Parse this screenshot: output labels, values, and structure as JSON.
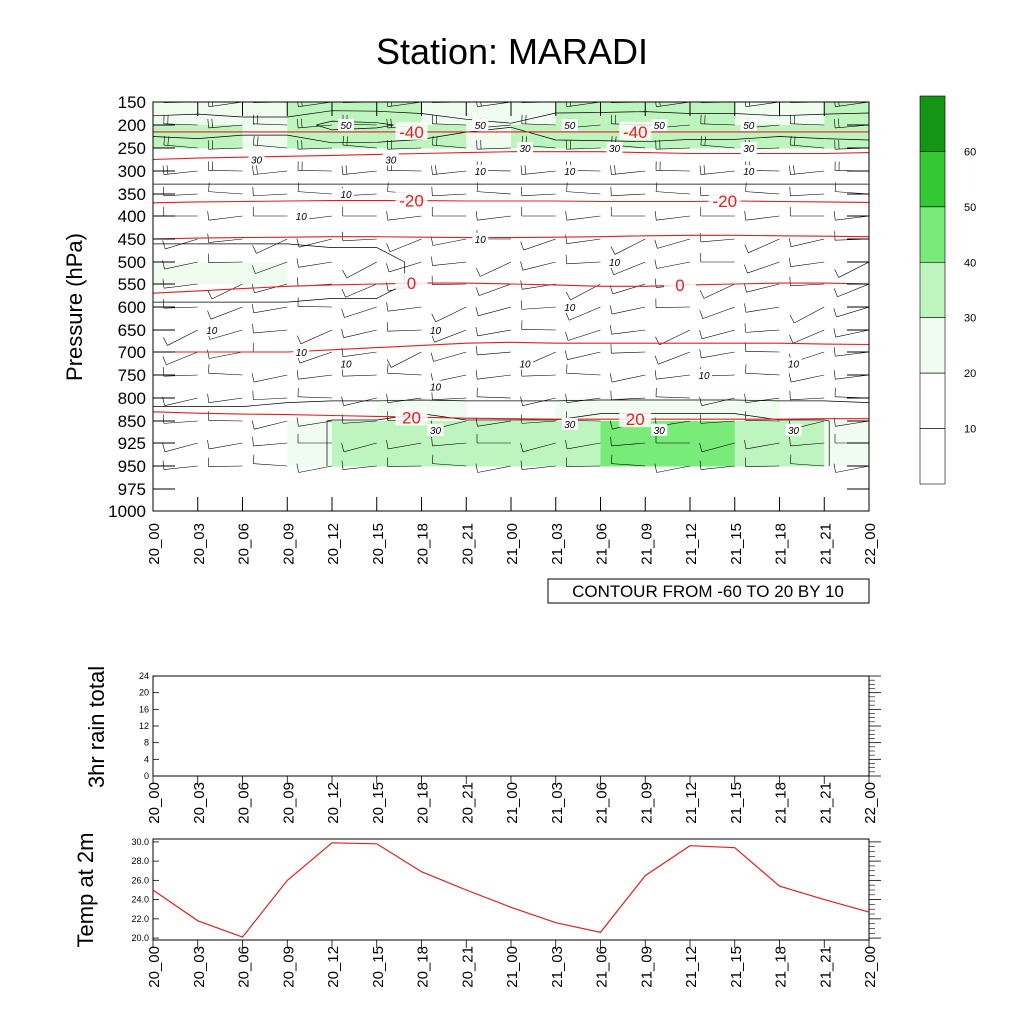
{
  "title": "Station: MARADI",
  "colors": {
    "isotherm": "#e02020",
    "contour": "#000000",
    "temp_line": "#e02020",
    "shade": [
      "#ffffff",
      "#ffffff",
      "#f0fcf0",
      "#bef5be",
      "#78eb78",
      "#32c832",
      "#149614"
    ]
  },
  "chart_data": [
    {
      "type": "contour",
      "name": "upper-air-time-section",
      "title": "Station: MARADI",
      "ylabel": "Pressure (hPa)",
      "xlabel": "",
      "x_ticks": [
        "20_00",
        "20_03",
        "20_06",
        "20_09",
        "20_12",
        "20_15",
        "20_18",
        "20_21",
        "21_00",
        "21_03",
        "21_06",
        "21_09",
        "21_12",
        "21_15",
        "21_18",
        "21_21",
        "22_00"
      ],
      "y_ticks": [
        "150",
        "200",
        "250",
        "300",
        "350",
        "400",
        "450",
        "500",
        "550",
        "600",
        "650",
        "700",
        "750",
        "800",
        "850",
        "925",
        "950",
        "975",
        "1000"
      ],
      "info_label": "CONTOUR FROM -60 TO 20 BY 10",
      "colorbar": {
        "levels": [
          10,
          20,
          30,
          40,
          50,
          60
        ],
        "labels": [
          "10",
          "20",
          "30",
          "40",
          "50",
          "60"
        ]
      },
      "wind_speed_contours": [
        {
          "level": 10,
          "label": "10"
        },
        {
          "level": 30,
          "label": "30"
        },
        {
          "level": 50,
          "label": "50"
        }
      ],
      "contour_labels": [
        {
          "text": "50",
          "level": 50,
          "time": "20_12",
          "pressure": 200
        },
        {
          "text": "50",
          "level": 50,
          "time": "20_21",
          "pressure": 200
        },
        {
          "text": "50",
          "level": 50,
          "time": "21_03",
          "pressure": 200
        },
        {
          "text": "50",
          "level": 50,
          "time": "21_09",
          "pressure": 200
        },
        {
          "text": "50",
          "level": 50,
          "time": "21_15",
          "pressure": 200
        },
        {
          "text": "30",
          "level": 30,
          "time": "20_06",
          "pressure": 275
        },
        {
          "text": "30",
          "level": 30,
          "time": "20_15",
          "pressure": 275
        },
        {
          "text": "30",
          "level": 30,
          "time": "21_00",
          "pressure": 250
        },
        {
          "text": "30",
          "level": 30,
          "time": "21_06",
          "pressure": 250
        },
        {
          "text": "30",
          "level": 30,
          "time": "21_15",
          "pressure": 250
        },
        {
          "text": "10",
          "level": 10,
          "time": "20_12",
          "pressure": 350
        },
        {
          "text": "10",
          "level": 10,
          "time": "20_21",
          "pressure": 300
        },
        {
          "text": "10",
          "level": 10,
          "time": "21_03",
          "pressure": 300
        },
        {
          "text": "10",
          "level": 10,
          "time": "21_15",
          "pressure": 300
        },
        {
          "text": "10",
          "level": 10,
          "time": "20_09",
          "pressure": 400
        },
        {
          "text": "10",
          "level": 10,
          "time": "20_21",
          "pressure": 450
        },
        {
          "text": "10",
          "level": 10,
          "time": "21_06",
          "pressure": 500
        },
        {
          "text": "10",
          "level": 10,
          "time": "21_03",
          "pressure": 600
        },
        {
          "text": "10",
          "level": 10,
          "time": "20_03",
          "pressure": 650
        },
        {
          "text": "10",
          "level": 10,
          "time": "20_18",
          "pressure": 650
        },
        {
          "text": "10",
          "level": 10,
          "time": "20_09",
          "pressure": 700
        },
        {
          "text": "10",
          "level": 10,
          "time": "20_12",
          "pressure": 725
        },
        {
          "text": "10",
          "level": 10,
          "time": "21_00",
          "pressure": 725
        },
        {
          "text": "10",
          "level": 10,
          "time": "21_12",
          "pressure": 750
        },
        {
          "text": "10",
          "level": 10,
          "time": "21_18",
          "pressure": 725
        },
        {
          "text": "10",
          "level": 10,
          "time": "20_18",
          "pressure": 775
        },
        {
          "text": "30",
          "level": 30,
          "time": "20_18",
          "pressure": 880
        },
        {
          "text": "30",
          "level": 30,
          "time": "21_03",
          "pressure": 860
        },
        {
          "text": "30",
          "level": 30,
          "time": "21_09",
          "pressure": 880
        },
        {
          "text": "30",
          "level": 30,
          "time": "21_18",
          "pressure": 880
        }
      ],
      "isotherms": [
        {
          "value": -40,
          "labels": [
            {
              "text": "-40",
              "time": "20_18"
            },
            {
              "text": "-40",
              "time": "21_09"
            }
          ],
          "pressure": [
            215,
            215,
            215,
            215,
            215,
            215,
            215,
            215,
            215,
            215,
            215,
            215,
            215,
            215,
            215,
            215,
            215
          ]
        },
        {
          "value": -30,
          "labels": [],
          "pressure": [
            275,
            272,
            270,
            268,
            266,
            264,
            262,
            260,
            258,
            258,
            258,
            260,
            262,
            262,
            262,
            262,
            260
          ]
        },
        {
          "value": -20,
          "labels": [
            {
              "text": "-20",
              "time": "20_18"
            },
            {
              "text": "-20",
              "time": "21_15"
            }
          ],
          "pressure": [
            370,
            368,
            367,
            366,
            365,
            365,
            365,
            366,
            366,
            366,
            367,
            367,
            367,
            366,
            367,
            368,
            369
          ]
        },
        {
          "value": -10,
          "labels": [],
          "pressure": [
            450,
            448,
            447,
            446,
            445,
            445,
            446,
            447,
            447,
            446,
            445,
            443,
            442,
            442,
            443,
            444,
            445
          ]
        },
        {
          "value": 0,
          "labels": [
            {
              "text": "0",
              "time": "20_18"
            },
            {
              "text": "0",
              "time": "21_12"
            }
          ],
          "pressure": [
            570,
            565,
            560,
            555,
            552,
            550,
            548,
            548,
            550,
            552,
            555,
            555,
            552,
            550,
            548,
            548,
            550
          ]
        },
        {
          "value": 10,
          "labels": [],
          "pressure": [
            700,
            700,
            700,
            700,
            695,
            690,
            685,
            680,
            678,
            680,
            680,
            680,
            680,
            680,
            680,
            682,
            683
          ]
        },
        {
          "value": 20,
          "labels": [
            {
              "text": "20",
              "time": "20_18"
            },
            {
              "text": "20",
              "time": "21_09"
            }
          ],
          "pressure": [
            830,
            833,
            835,
            836,
            838,
            840,
            842,
            844,
            845,
            846,
            846,
            846,
            846,
            846,
            846,
            845,
            845
          ]
        }
      ]
    },
    {
      "type": "line",
      "name": "rain-panel",
      "ylabel": "3hr rain total",
      "x": [
        "20_00",
        "20_03",
        "20_06",
        "20_09",
        "20_12",
        "20_15",
        "20_18",
        "20_21",
        "21_00",
        "21_03",
        "21_06",
        "21_09",
        "21_12",
        "21_15",
        "21_18",
        "21_21",
        "22_00"
      ],
      "y_ticks": [
        "0",
        "4",
        "8",
        "12",
        "16",
        "20",
        "24"
      ],
      "ylim": [
        0,
        24
      ],
      "values": [
        0,
        0,
        0,
        0,
        0,
        0,
        0,
        0,
        0,
        0,
        0,
        0,
        0,
        0,
        0,
        0,
        0
      ]
    },
    {
      "type": "line",
      "name": "temp-panel",
      "ylabel": "Temp at 2m",
      "x": [
        "20_00",
        "20_03",
        "20_06",
        "20_09",
        "20_12",
        "20_15",
        "20_18",
        "20_21",
        "21_00",
        "21_03",
        "21_06",
        "21_09",
        "21_12",
        "21_15",
        "21_18",
        "21_21",
        "22_00"
      ],
      "y_ticks": [
        "20.0",
        "22.0",
        "24.0",
        "26.0",
        "28.0",
        "30.0"
      ],
      "ylim": [
        19.8,
        30.3
      ],
      "values": [
        25.0,
        21.8,
        20.1,
        26.0,
        29.9,
        29.8,
        26.9,
        25.0,
        23.2,
        21.6,
        20.6,
        26.5,
        29.6,
        29.4,
        25.4,
        24.0,
        22.7
      ]
    }
  ]
}
